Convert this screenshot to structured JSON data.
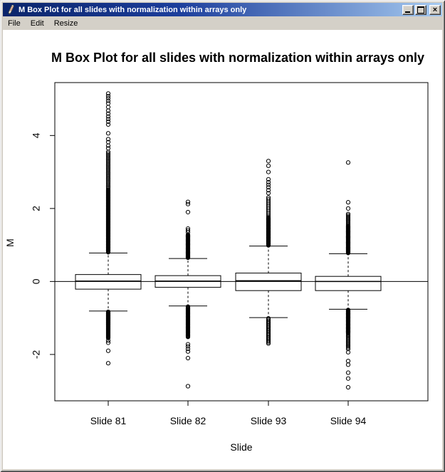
{
  "window": {
    "title": "M Box Plot for all slides with normalization within arrays only",
    "controls": {
      "minimize": "minimize",
      "maximize": "maximize",
      "close": "close"
    }
  },
  "menu": {
    "items": [
      "File",
      "Edit",
      "Resize"
    ]
  },
  "chart_data": {
    "type": "boxplot",
    "title": "M Box Plot for all slides with normalization within arrays only",
    "xlabel": "Slide",
    "ylabel": "M",
    "categories": [
      "Slide 81",
      "Slide 82",
      "Slide 93",
      "Slide 94"
    ],
    "y_ticks": [
      -2,
      0,
      2,
      4
    ],
    "ylim": [
      -3.27,
      5.45
    ],
    "reference_line": 0,
    "grid": false,
    "series": [
      {
        "name": "Slide 81",
        "q1": -0.21,
        "median": 0.01,
        "q3": 0.19,
        "whisker_low": -0.81,
        "whisker_high": 0.78,
        "outliers": {
          "ranges": [
            {
              "from": 0.8,
              "to": 2.5,
              "count": 110
            },
            {
              "from": 2.52,
              "to": 3.55,
              "count": 26
            },
            {
              "from": -0.83,
              "to": -1.55,
              "count": 50
            }
          ],
          "points": [
            3.65,
            3.72,
            3.82,
            3.9,
            4.06,
            4.3,
            4.38,
            4.45,
            4.52,
            4.6,
            4.68,
            4.78,
            4.88,
            4.95,
            5.02,
            5.08,
            5.15,
            -1.62,
            -1.68,
            -1.9,
            -2.24
          ]
        }
      },
      {
        "name": "Slide 82",
        "q1": -0.16,
        "median": 0.01,
        "q3": 0.16,
        "whisker_low": -0.67,
        "whisker_high": 0.63,
        "outliers": {
          "ranges": [
            {
              "from": 0.65,
              "to": 1.28,
              "count": 60
            },
            {
              "from": -0.69,
              "to": -1.52,
              "count": 55
            }
          ],
          "points": [
            1.35,
            1.4,
            1.45,
            1.9,
            2.12,
            2.18,
            -1.72,
            -1.78,
            -1.85,
            -1.92,
            -2.1,
            -2.87
          ]
        }
      },
      {
        "name": "Slide 93",
        "q1": -0.25,
        "median": 0.02,
        "q3": 0.23,
        "whisker_low": -0.99,
        "whisker_high": 0.97,
        "outliers": {
          "ranges": [
            {
              "from": 0.99,
              "to": 1.75,
              "count": 70
            },
            {
              "from": 1.78,
              "to": 2.3,
              "count": 12
            },
            {
              "from": -1.01,
              "to": -1.7,
              "count": 22
            }
          ],
          "points": [
            2.42,
            2.5,
            2.58,
            2.65,
            2.72,
            2.8,
            3.0,
            3.17,
            3.3
          ]
        }
      },
      {
        "name": "Slide 94",
        "q1": -0.25,
        "median": 0.0,
        "q3": 0.14,
        "whisker_low": -0.76,
        "whisker_high": 0.76,
        "outliers": {
          "ranges": [
            {
              "from": 0.78,
              "to": 1.5,
              "count": 70
            },
            {
              "from": 1.52,
              "to": 1.85,
              "count": 10
            },
            {
              "from": -0.78,
              "to": -1.42,
              "count": 60
            },
            {
              "from": -1.45,
              "to": -1.85,
              "count": 12
            }
          ],
          "points": [
            2.0,
            2.17,
            3.26,
            -1.94,
            -2.18,
            -2.28,
            -2.5,
            -2.66,
            -2.9
          ]
        }
      }
    ]
  }
}
